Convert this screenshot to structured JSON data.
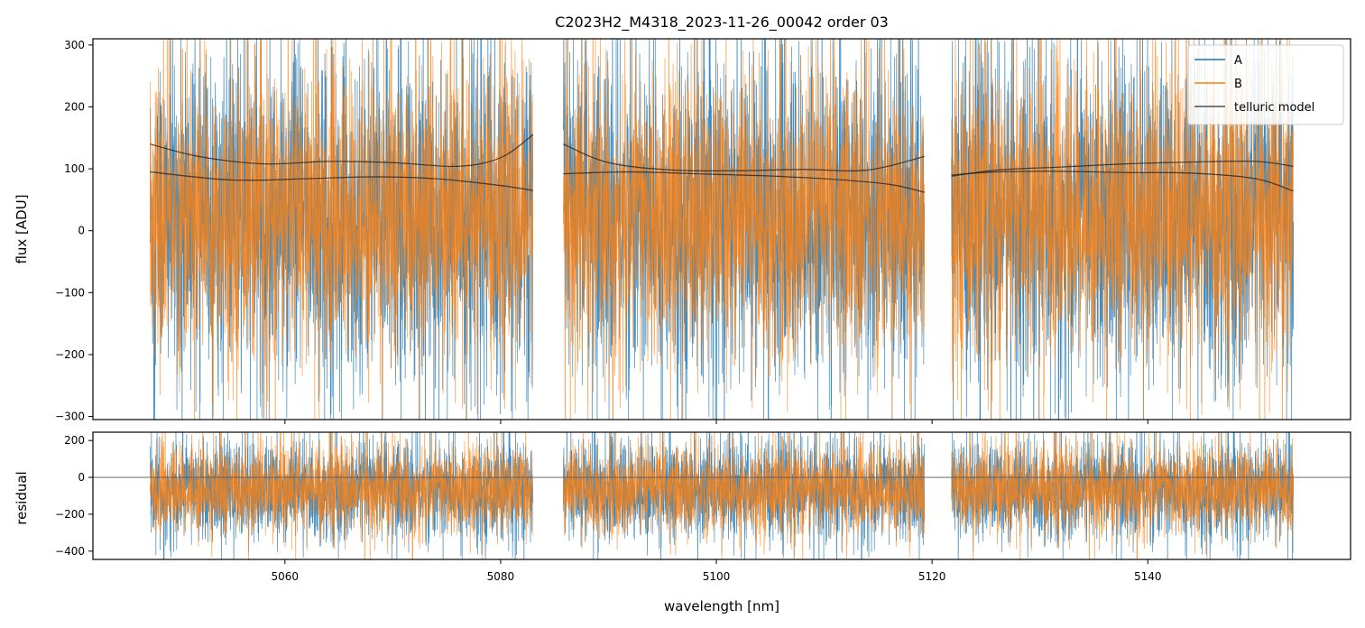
{
  "chart_data": [
    {
      "type": "line",
      "title": "C2023H2_M4318_2023-11-26_00042  order 03",
      "xlabel": "",
      "ylabel": "flux [ADU]",
      "xlim": [
        5042.2,
        5158.8
      ],
      "ylim": [
        -305,
        310
      ],
      "yticks": [
        -300,
        -200,
        -100,
        0,
        100,
        200,
        300
      ],
      "yticklabels": [
        "−300",
        "−200",
        "−100",
        "0",
        "100",
        "200",
        "300"
      ],
      "segments": [
        [
          5047.5,
          5083.0
        ],
        [
          5085.8,
          5119.3
        ],
        [
          5121.8,
          5153.5
        ]
      ],
      "legend": {
        "position": "upper right",
        "entries": [
          "A",
          "B",
          "telluric model"
        ]
      },
      "series": [
        {
          "name": "A",
          "color": "#1f77b4",
          "center": 20,
          "amplitude": 170
        },
        {
          "name": "B",
          "color": "#ff7f0e",
          "center": 25,
          "amplitude": 150
        },
        {
          "name": "telluric model",
          "color": "#222222",
          "curves": [
            {
              "x": [
                5047.5,
                5052,
                5058,
                5064,
                5070,
                5076,
                5080,
                5083.0
              ],
              "y": [
                140,
                120,
                108,
                112,
                110,
                104,
                118,
                155
              ]
            },
            {
              "x": [
                5047.5,
                5055,
                5062,
                5068,
                5074,
                5080,
                5083.0
              ],
              "y": [
                95,
                82,
                84,
                87,
                84,
                73,
                65
              ]
            },
            {
              "x": [
                5085.8,
                5090,
                5096,
                5102,
                5108,
                5114,
                5119.3
              ],
              "y": [
                140,
                110,
                98,
                97,
                99,
                98,
                120
              ]
            },
            {
              "x": [
                5085.8,
                5092,
                5098,
                5104,
                5110,
                5116,
                5119.3
              ],
              "y": [
                92,
                95,
                92,
                89,
                84,
                75,
                62
              ]
            },
            {
              "x": [
                5121.8,
                5126,
                5132,
                5138,
                5144,
                5150,
                5153.5
              ],
              "y": [
                88,
                98,
                103,
                108,
                111,
                112,
                104
              ]
            },
            {
              "x": [
                5121.8,
                5126,
                5132,
                5138,
                5144,
                5150,
                5153.5
              ],
              "y": [
                90,
                95,
                96,
                94,
                93,
                84,
                64
              ]
            }
          ]
        }
      ]
    },
    {
      "type": "line",
      "title": "",
      "xlabel": "wavelength [nm]",
      "ylabel": "residual",
      "xlim": [
        5042.2,
        5158.8
      ],
      "ylim": [
        -445,
        245
      ],
      "xticks": [
        5060,
        5080,
        5100,
        5120,
        5140
      ],
      "xticklabels": [
        "5060",
        "5080",
        "5100",
        "5120",
        "5140"
      ],
      "yticks": [
        -400,
        -200,
        0,
        200
      ],
      "yticklabels": [
        "−400",
        "−200",
        "0",
        "200"
      ],
      "hline": 0,
      "series": [
        {
          "name": "A",
          "color": "#1f77b4",
          "center": -70,
          "amplitude": 175
        },
        {
          "name": "B",
          "color": "#ff7f0e",
          "center": -65,
          "amplitude": 155
        }
      ]
    }
  ]
}
